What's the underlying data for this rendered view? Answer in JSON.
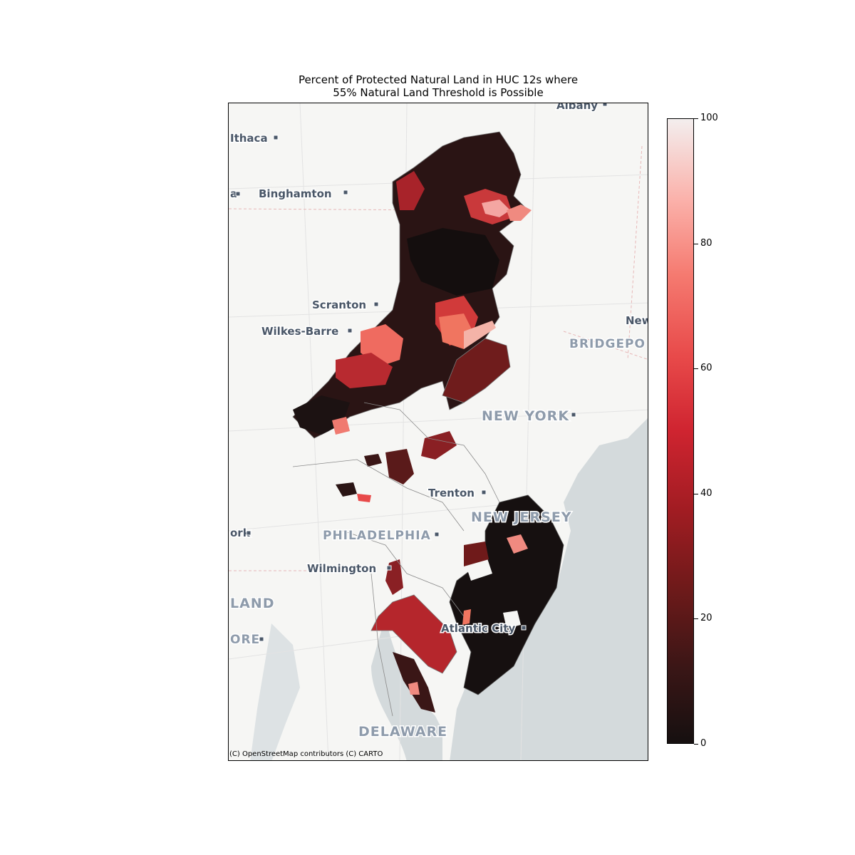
{
  "map": {
    "title_line1": "Percent of Protected Natural Land in HUC 12s where",
    "title_line2": "55% Natural Land Threshold is Possible",
    "attribution": "(C) OpenStreetMap contributors (C) CARTO",
    "cities": {
      "albany": "Albany",
      "ithaca": "Ithaca",
      "binghamton": "Binghamton",
      "scranton": "Scranton",
      "wilkes_barre": "Wilkes-Barre",
      "new_haven": "New",
      "bridgeport": "BRIDGEPO",
      "new_york": "NEW YORK",
      "trenton": "Trenton",
      "philadelphia": "PHILADELPHIA",
      "york": "ork",
      "wilmington": "Wilmington",
      "atlantic_city": "Atlantic City",
      "baltimore": "ORE",
      "partial_left": "a"
    },
    "states": {
      "new_jersey": "NEW JERSEY",
      "maryland": "LAND",
      "delaware": "DELAWARE"
    },
    "colors": {
      "water": "#d4dadc",
      "land": "#f6f6f4",
      "low": "#161010",
      "high": "#f3eeee"
    }
  },
  "colorbar": {
    "min": 0,
    "max": 100,
    "ticks": [
      "0",
      "20",
      "40",
      "60",
      "80",
      "100"
    ]
  }
}
